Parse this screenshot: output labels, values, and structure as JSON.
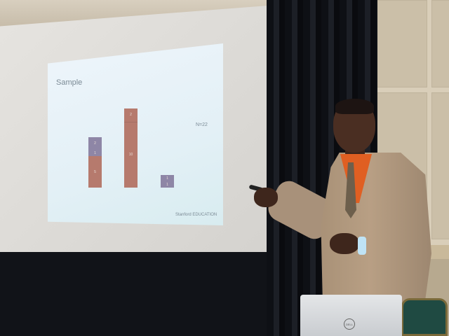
{
  "slide": {
    "title": "Sample",
    "n_label": "N=22",
    "footer": "Stanford EDUCATION",
    "bars": [
      {
        "segments": [
          {
            "value": "5",
            "color": "#b67a6d"
          },
          {
            "value": "1",
            "color": "#8e86a6"
          },
          {
            "value": "2",
            "color": "#8e86a6"
          }
        ]
      },
      {
        "segments": [
          {
            "value": "10",
            "color": "#b67a6d"
          },
          {
            "value": "2",
            "color": "#b67a6d"
          }
        ]
      },
      {
        "segments": [
          {
            "value": "1",
            "color": "#8e86a6"
          },
          {
            "value": "1",
            "color": "#8e86a6"
          }
        ]
      }
    ]
  },
  "laptop": {
    "logo": "DELL"
  }
}
